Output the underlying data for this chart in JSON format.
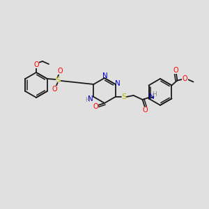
{
  "bg_color": "#e0e0e0",
  "bond_color": "#1a1a1a",
  "atom_colors": {
    "O": "#ff0000",
    "N": "#0000cd",
    "S": "#b8b800",
    "H": "#888888",
    "C": "#1a1a1a"
  },
  "figsize": [
    3.0,
    3.0
  ],
  "dpi": 100
}
